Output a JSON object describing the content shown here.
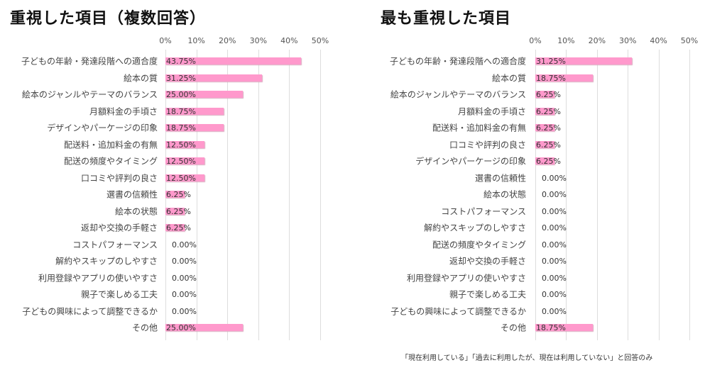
{
  "chart_data": [
    {
      "type": "bar",
      "orientation": "horizontal",
      "title": "重視した項目（複数回答）",
      "xlim": [
        0,
        50
      ],
      "ticks": [
        "0%",
        "10%",
        "20%",
        "30%",
        "40%",
        "50%"
      ],
      "categories": [
        "子どもの年齢・発達段階への適合度",
        "絵本の質",
        "絵本のジャンルやテーマのバランス",
        "月額料金の手頃さ",
        "デザインやパーケージの印象",
        "配送料・追加料金の有無",
        "配送の頻度やタイミング",
        "口コミや評判の良さ",
        "選書の信頼性",
        "絵本の状態",
        "返却や交換の手軽さ",
        "コストパフォーマンス",
        "解約やスキップのしやすさ",
        "利用登録やアプリの使いやすさ",
        "親子で楽しめる工夫",
        "子どもの興味によって調整できるか",
        "その他"
      ],
      "values": [
        43.75,
        31.25,
        25.0,
        18.75,
        18.75,
        12.5,
        12.5,
        12.5,
        6.25,
        6.25,
        6.25,
        0,
        0,
        0,
        0,
        0,
        25.0
      ],
      "labels": [
        "43.75%",
        "31.25%",
        "25.00%",
        "18.75%",
        "18.75%",
        "12.50%",
        "12.50%",
        "12.50%",
        "6.25%",
        "6.25%",
        "6.25%",
        "0.00%",
        "0.00%",
        "0.00%",
        "0.00%",
        "0.00%",
        "25.00%"
      ],
      "color": "#ff99cc"
    },
    {
      "type": "bar",
      "orientation": "horizontal",
      "title": "最も重視した項目",
      "xlim": [
        0,
        50
      ],
      "ticks": [
        "0%",
        "10%",
        "20%",
        "30%",
        "40%",
        "50%"
      ],
      "categories": [
        "子どもの年齢・発達段階への適合度",
        "絵本の質",
        "絵本のジャンルやテーマのバランス",
        "月額料金の手頃さ",
        "配送料・追加料金の有無",
        "口コミや評判の良さ",
        "デザインやパーケージの印象",
        "選書の信頼性",
        "絵本の状態",
        "コストパフォーマンス",
        "解約やスキップのしやすさ",
        "配送の頻度やタイミング",
        "返却や交換の手軽さ",
        "利用登録やアプリの使いやすさ",
        "親子で楽しめる工夫",
        "子どもの興味によって調整できるか",
        "その他"
      ],
      "values": [
        31.25,
        18.75,
        6.25,
        6.25,
        6.25,
        6.25,
        6.25,
        0,
        0,
        0,
        0,
        0,
        0,
        0,
        0,
        0,
        18.75
      ],
      "labels": [
        "31.25%",
        "18.75%",
        "6.25%",
        "6.25%",
        "6.25%",
        "6.25%",
        "6.25%",
        "0.00%",
        "0.00%",
        "0.00%",
        "0.00%",
        "0.00%",
        "0.00%",
        "0.00%",
        "0.00%",
        "0.00%",
        "18.75%"
      ],
      "color": "#ff99cc"
    }
  ],
  "footnote": "「現在利用している」「過去に利用したが、現在は利用していない」と回答のみ"
}
